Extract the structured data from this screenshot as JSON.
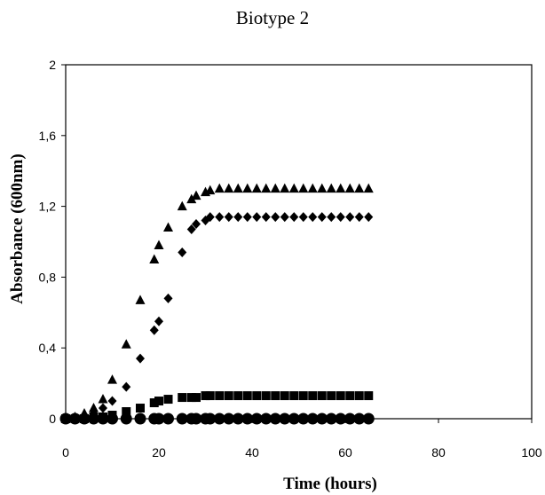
{
  "chart_data": {
    "type": "scatter",
    "title": "Biotype 2",
    "xlabel": "Time (hours)",
    "ylabel": "Absorbance (600nm)",
    "xlim": [
      0,
      100
    ],
    "ylim": [
      0,
      2
    ],
    "xticks": [
      "0",
      "20",
      "40",
      "60",
      "80",
      "100"
    ],
    "yticks": [
      "0",
      "0,4",
      "0,8",
      "1,2",
      "1,6",
      "2"
    ],
    "xtick_values": [
      0,
      20,
      40,
      60,
      80,
      100
    ],
    "ytick_values": [
      0,
      0.4,
      0.8,
      1.2,
      1.6,
      2
    ],
    "grid": false,
    "legend": false,
    "series": [
      {
        "marker": "triangle",
        "color": "#000000",
        "x": [
          0,
          2,
          4,
          6,
          8,
          10,
          13,
          16,
          19,
          20,
          22,
          25,
          27,
          28,
          30,
          31,
          33,
          35,
          37,
          39,
          41,
          43,
          45,
          47,
          49,
          51,
          53,
          55,
          57,
          59,
          61,
          63,
          65
        ],
        "y": [
          0,
          0.01,
          0.03,
          0.06,
          0.11,
          0.22,
          0.42,
          0.67,
          0.9,
          0.98,
          1.08,
          1.2,
          1.24,
          1.26,
          1.28,
          1.29,
          1.3,
          1.3,
          1.3,
          1.3,
          1.3,
          1.3,
          1.3,
          1.3,
          1.3,
          1.3,
          1.3,
          1.3,
          1.3,
          1.3,
          1.3,
          1.3,
          1.3
        ]
      },
      {
        "marker": "diamond",
        "color": "#000000",
        "x": [
          0,
          2,
          4,
          6,
          8,
          10,
          13,
          16,
          19,
          20,
          22,
          25,
          27,
          28,
          30,
          31,
          33,
          35,
          37,
          39,
          41,
          43,
          45,
          47,
          49,
          51,
          53,
          55,
          57,
          59,
          61,
          63,
          65
        ],
        "y": [
          0,
          0,
          0.01,
          0.03,
          0.06,
          0.1,
          0.18,
          0.34,
          0.5,
          0.55,
          0.68,
          0.94,
          1.07,
          1.1,
          1.12,
          1.14,
          1.14,
          1.14,
          1.14,
          1.14,
          1.14,
          1.14,
          1.14,
          1.14,
          1.14,
          1.14,
          1.14,
          1.14,
          1.14,
          1.14,
          1.14,
          1.14,
          1.14
        ]
      },
      {
        "marker": "square",
        "color": "#000000",
        "x": [
          0,
          2,
          4,
          6,
          8,
          10,
          13,
          16,
          19,
          20,
          22,
          25,
          27,
          28,
          30,
          31,
          33,
          35,
          37,
          39,
          41,
          43,
          45,
          47,
          49,
          51,
          53,
          55,
          57,
          59,
          61,
          63,
          65
        ],
        "y": [
          0,
          0,
          0,
          0.01,
          0.01,
          0.02,
          0.04,
          0.06,
          0.09,
          0.1,
          0.11,
          0.12,
          0.12,
          0.12,
          0.13,
          0.13,
          0.13,
          0.13,
          0.13,
          0.13,
          0.13,
          0.13,
          0.13,
          0.13,
          0.13,
          0.13,
          0.13,
          0.13,
          0.13,
          0.13,
          0.13,
          0.13,
          0.13
        ]
      },
      {
        "marker": "circle",
        "color": "#000000",
        "x": [
          0,
          2,
          4,
          6,
          8,
          10,
          13,
          16,
          19,
          20,
          22,
          25,
          27,
          28,
          30,
          31,
          33,
          35,
          37,
          39,
          41,
          43,
          45,
          47,
          49,
          51,
          53,
          55,
          57,
          59,
          61,
          63,
          65
        ],
        "y": [
          0,
          0,
          0,
          0,
          0,
          0,
          0,
          0,
          0,
          0,
          0,
          0,
          0,
          0,
          0,
          0,
          0,
          0,
          0,
          0,
          0,
          0,
          0,
          0,
          0,
          0,
          0,
          0,
          0,
          0,
          0,
          0,
          0
        ]
      }
    ]
  }
}
